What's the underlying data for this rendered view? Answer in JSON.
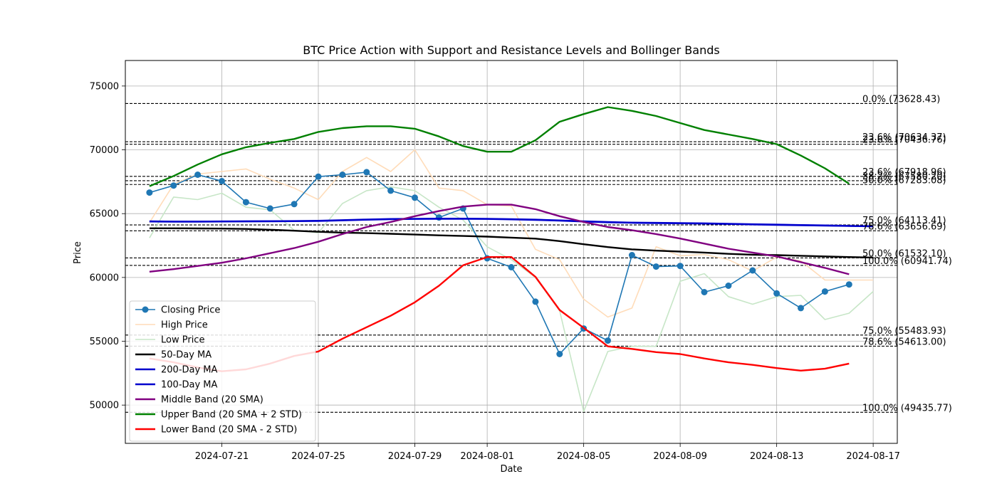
{
  "chart_data": {
    "type": "line",
    "title": "BTC Price Action with Support and Resistance Levels and Bollinger Bands",
    "xlabel": "Date",
    "ylabel": "Price",
    "xlim": [
      "2024-07-17",
      "2024-08-18"
    ],
    "ylim": [
      47000,
      77000
    ],
    "x_ticks": [
      "2024-07-21",
      "2024-07-25",
      "2024-07-29",
      "2024-08-01",
      "2024-08-05",
      "2024-08-09",
      "2024-08-13",
      "2024-08-17"
    ],
    "y_ticks": [
      50000,
      55000,
      60000,
      65000,
      70000,
      75000
    ],
    "grid": true,
    "legend_position": "lower-left",
    "dates": [
      "2024-07-18",
      "2024-07-19",
      "2024-07-20",
      "2024-07-21",
      "2024-07-22",
      "2024-07-23",
      "2024-07-24",
      "2024-07-25",
      "2024-07-26",
      "2024-07-27",
      "2024-07-28",
      "2024-07-29",
      "2024-07-30",
      "2024-07-31",
      "2024-08-01",
      "2024-08-02",
      "2024-08-03",
      "2024-08-04",
      "2024-08-05",
      "2024-08-06",
      "2024-08-07",
      "2024-08-08",
      "2024-08-09",
      "2024-08-10",
      "2024-08-11",
      "2024-08-12",
      "2024-08-13",
      "2024-08-14",
      "2024-08-15",
      "2024-08-16",
      "2024-08-17"
    ],
    "series": [
      {
        "name": "High Price",
        "color": "#ffdcb9",
        "marker": false,
        "values": [
          64300,
          67300,
          68100,
          68300,
          68500,
          67700,
          67000,
          66100,
          68300,
          69400,
          68300,
          70000,
          67000,
          66800,
          65700,
          65600,
          62200,
          61400,
          58300,
          56900,
          57600,
          62400,
          61700,
          61800,
          61400,
          60500,
          61600,
          61300,
          59800,
          59800,
          59800
        ]
      },
      {
        "name": "Low Price",
        "color": "#c7e6c7",
        "marker": false,
        "values": [
          63100,
          66300,
          66100,
          66600,
          65500,
          65300,
          63700,
          63500,
          65800,
          66800,
          67100,
          66800,
          65500,
          64500,
          62400,
          61400,
          60000,
          57400,
          49500,
          54200,
          54600,
          54600,
          59700,
          60300,
          58500,
          57900,
          58500,
          58600,
          56700,
          57200,
          58900
        ]
      },
      {
        "name": "Closing Price",
        "color": "#1f77b4",
        "marker": true,
        "values": [
          66650,
          67200,
          68050,
          67550,
          65900,
          65400,
          65750,
          67900,
          68050,
          68250,
          66800,
          66250,
          64700,
          65400,
          61500,
          60800,
          58100,
          54000,
          56000,
          55050,
          61750,
          60850,
          60900,
          58850,
          59350,
          60550,
          58750,
          57600,
          58900,
          59450,
          null
        ]
      },
      {
        "name": "50-Day MA",
        "color": "#000000",
        "marker": false,
        "values": [
          63850,
          63850,
          63840,
          63830,
          63800,
          63740,
          63660,
          63580,
          63510,
          63470,
          63420,
          63360,
          63300,
          63250,
          63200,
          63120,
          63040,
          62850,
          62600,
          62380,
          62200,
          62100,
          62030,
          61950,
          61850,
          61780,
          61750,
          61700,
          61650,
          61600,
          61560
        ]
      },
      {
        "name": "200-Day MA",
        "color": "#0000cd",
        "marker": false,
        "values": [
          64400,
          64380,
          64380,
          64390,
          64400,
          64410,
          64420,
          64440,
          64490,
          64540,
          64580,
          64600,
          64610,
          64610,
          64600,
          64570,
          64530,
          64470,
          64400,
          64340,
          64300,
          64280,
          64260,
          64240,
          64210,
          64170,
          64140,
          64110,
          64080,
          64040,
          64010
        ]
      },
      {
        "name": "100-Day MA",
        "color": "#0000cd",
        "marker": false,
        "values": [
          64380,
          64370,
          64370,
          64380,
          64390,
          64400,
          64410,
          64420,
          64470,
          64520,
          64560,
          64580,
          64590,
          64590,
          64580,
          64550,
          64510,
          64450,
          64380,
          64320,
          64280,
          64260,
          64240,
          64220,
          64190,
          64150,
          64120,
          64090,
          64060,
          64030,
          64000
        ]
      },
      {
        "name": "Middle Band (20 SMA)",
        "color": "#800080",
        "marker": false,
        "values": [
          60450,
          60650,
          60900,
          61150,
          61500,
          61900,
          62300,
          62800,
          63400,
          63950,
          64350,
          64800,
          65200,
          65550,
          65700,
          65700,
          65350,
          64800,
          64350,
          63950,
          63700,
          63400,
          63050,
          62650,
          62250,
          61950,
          61650,
          61200,
          60750,
          60250,
          null
        ]
      },
      {
        "name": "Upper Band (20 SMA + 2 STD)",
        "color": "#008000",
        "marker": false,
        "values": [
          67150,
          67950,
          68850,
          69650,
          70200,
          70550,
          70850,
          71400,
          71700,
          71850,
          71850,
          71650,
          71050,
          70300,
          69850,
          69850,
          70750,
          72200,
          72800,
          73350,
          73050,
          72650,
          72100,
          71550,
          71200,
          70850,
          70450,
          69550,
          68550,
          67350,
          null
        ]
      },
      {
        "name": "Lower Band (20 SMA - 2 STD)",
        "color": "#ff0000",
        "marker": false,
        "values": [
          53650,
          53350,
          52950,
          52650,
          52800,
          53250,
          53850,
          54200,
          55200,
          56100,
          57000,
          58050,
          59350,
          60950,
          61600,
          61600,
          60050,
          57450,
          56050,
          54600,
          54400,
          54150,
          54000,
          53650,
          53350,
          53150,
          52900,
          52700,
          52850,
          53250,
          null
        ]
      }
    ],
    "levels": [
      {
        "value": 73628.43,
        "label": "0.0% (73628.43)"
      },
      {
        "value": 70634.37,
        "label": "23.6% (70634.37)"
      },
      {
        "value": 70436.76,
        "label": "23.6% (70436.76)"
      },
      {
        "value": 67918.96,
        "label": "23.6% (67918.96)"
      },
      {
        "value": 67580.2,
        "label": "38.2% (67580.20)"
      },
      {
        "value": 67283.08,
        "label": "50.0% (67283.08)"
      },
      {
        "value": 64113.41,
        "label": "75.0% (64113.41)"
      },
      {
        "value": 63656.69,
        "label": "78.6% (63656.69)"
      },
      {
        "value": 61532.1,
        "label": "50.0% (61532.10)"
      },
      {
        "value": 60941.74,
        "label": "100.0% (60941.74)"
      },
      {
        "value": 55483.93,
        "label": "75.0% (55483.93)"
      },
      {
        "value": 54613.0,
        "label": "78.6% (54613.00)"
      },
      {
        "value": 49435.77,
        "label": "100.0% (49435.77)"
      }
    ],
    "legend": [
      "Closing Price",
      "High Price",
      "Low Price",
      "50-Day MA",
      "200-Day MA",
      "100-Day MA",
      "Middle Band (20 SMA)",
      "Upper Band (20 SMA + 2 STD)",
      "Lower Band (20 SMA - 2 STD)"
    ]
  }
}
